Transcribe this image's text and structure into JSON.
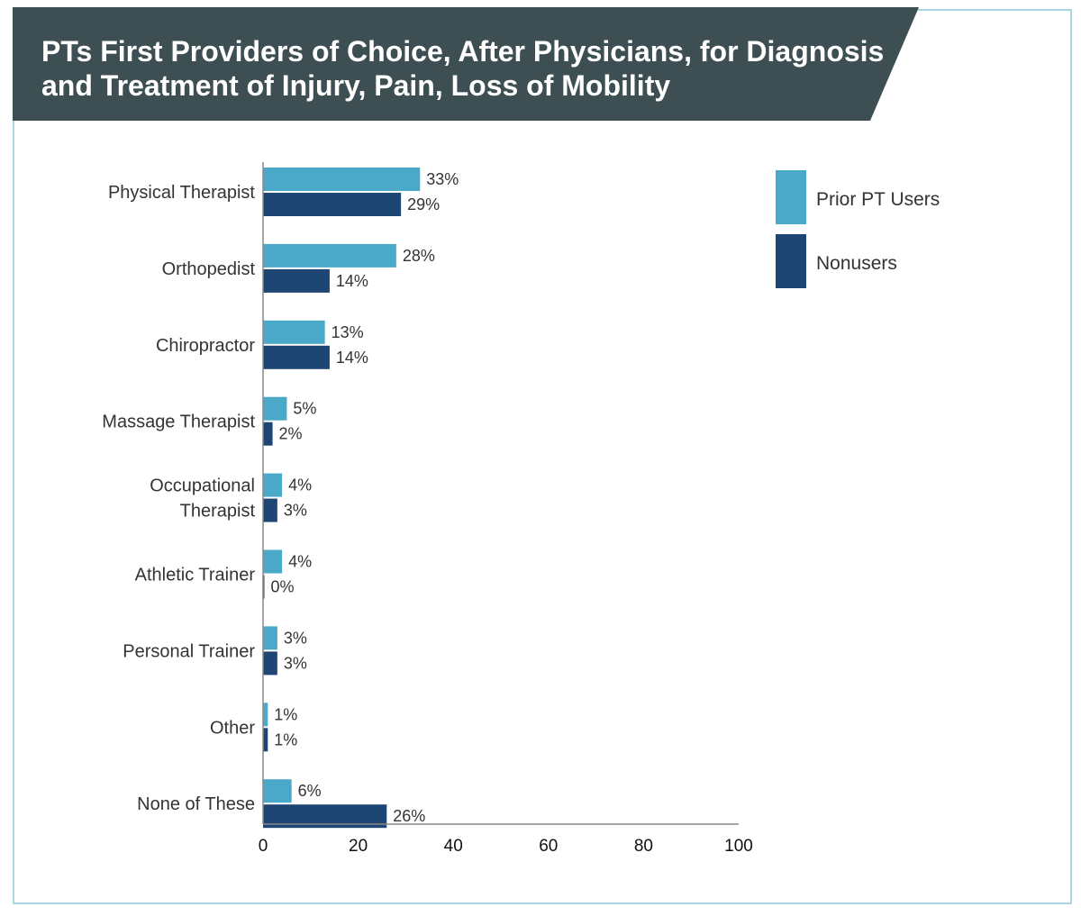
{
  "header": {
    "title": "PTs First Providers of Choice, After Physicians, for Diagnosis and Treatment of Injury, Pain, Loss of Mobility"
  },
  "colors": {
    "banner": "#3d4f52",
    "border": "#a9d6df",
    "prior_pt_users": "#4aa9c8",
    "nonusers": "#1e4675"
  },
  "chart_data": {
    "type": "bar",
    "orientation": "horizontal",
    "title": "PTs First Providers of Choice, After Physicians, for Diagnosis and Treatment of Injury, Pain, Loss of Mobility",
    "categories": [
      [
        "Physical Therapist"
      ],
      [
        "Orthopedist"
      ],
      [
        "Chiropractor"
      ],
      [
        "Massage Therapist"
      ],
      [
        "Occupational",
        "Therapist"
      ],
      [
        "Athletic Trainer"
      ],
      [
        "Personal Trainer"
      ],
      [
        "Other"
      ],
      [
        "None of These"
      ]
    ],
    "series": [
      {
        "name": "Prior PT Users",
        "values": [
          33,
          28,
          13,
          5,
          4,
          4,
          3,
          1,
          6
        ],
        "labels": [
          "33%",
          "28%",
          "13%",
          "5%",
          "4%",
          "4%",
          "3%",
          "1%",
          "6%"
        ]
      },
      {
        "name": "Nonusers",
        "values": [
          29,
          14,
          14,
          2,
          3,
          0,
          3,
          1,
          26
        ],
        "labels": [
          "29%",
          "14%",
          "14%",
          "2%",
          "3%",
          "0%",
          "3%",
          "1%",
          "26%"
        ]
      }
    ],
    "xlim": [
      0,
      100
    ],
    "xticks": [
      0,
      20,
      40,
      60,
      80,
      100
    ],
    "xtick_labels": [
      "0",
      "20",
      "40",
      "60",
      "80",
      "100"
    ],
    "grid": false,
    "legend_position": "top-right"
  }
}
